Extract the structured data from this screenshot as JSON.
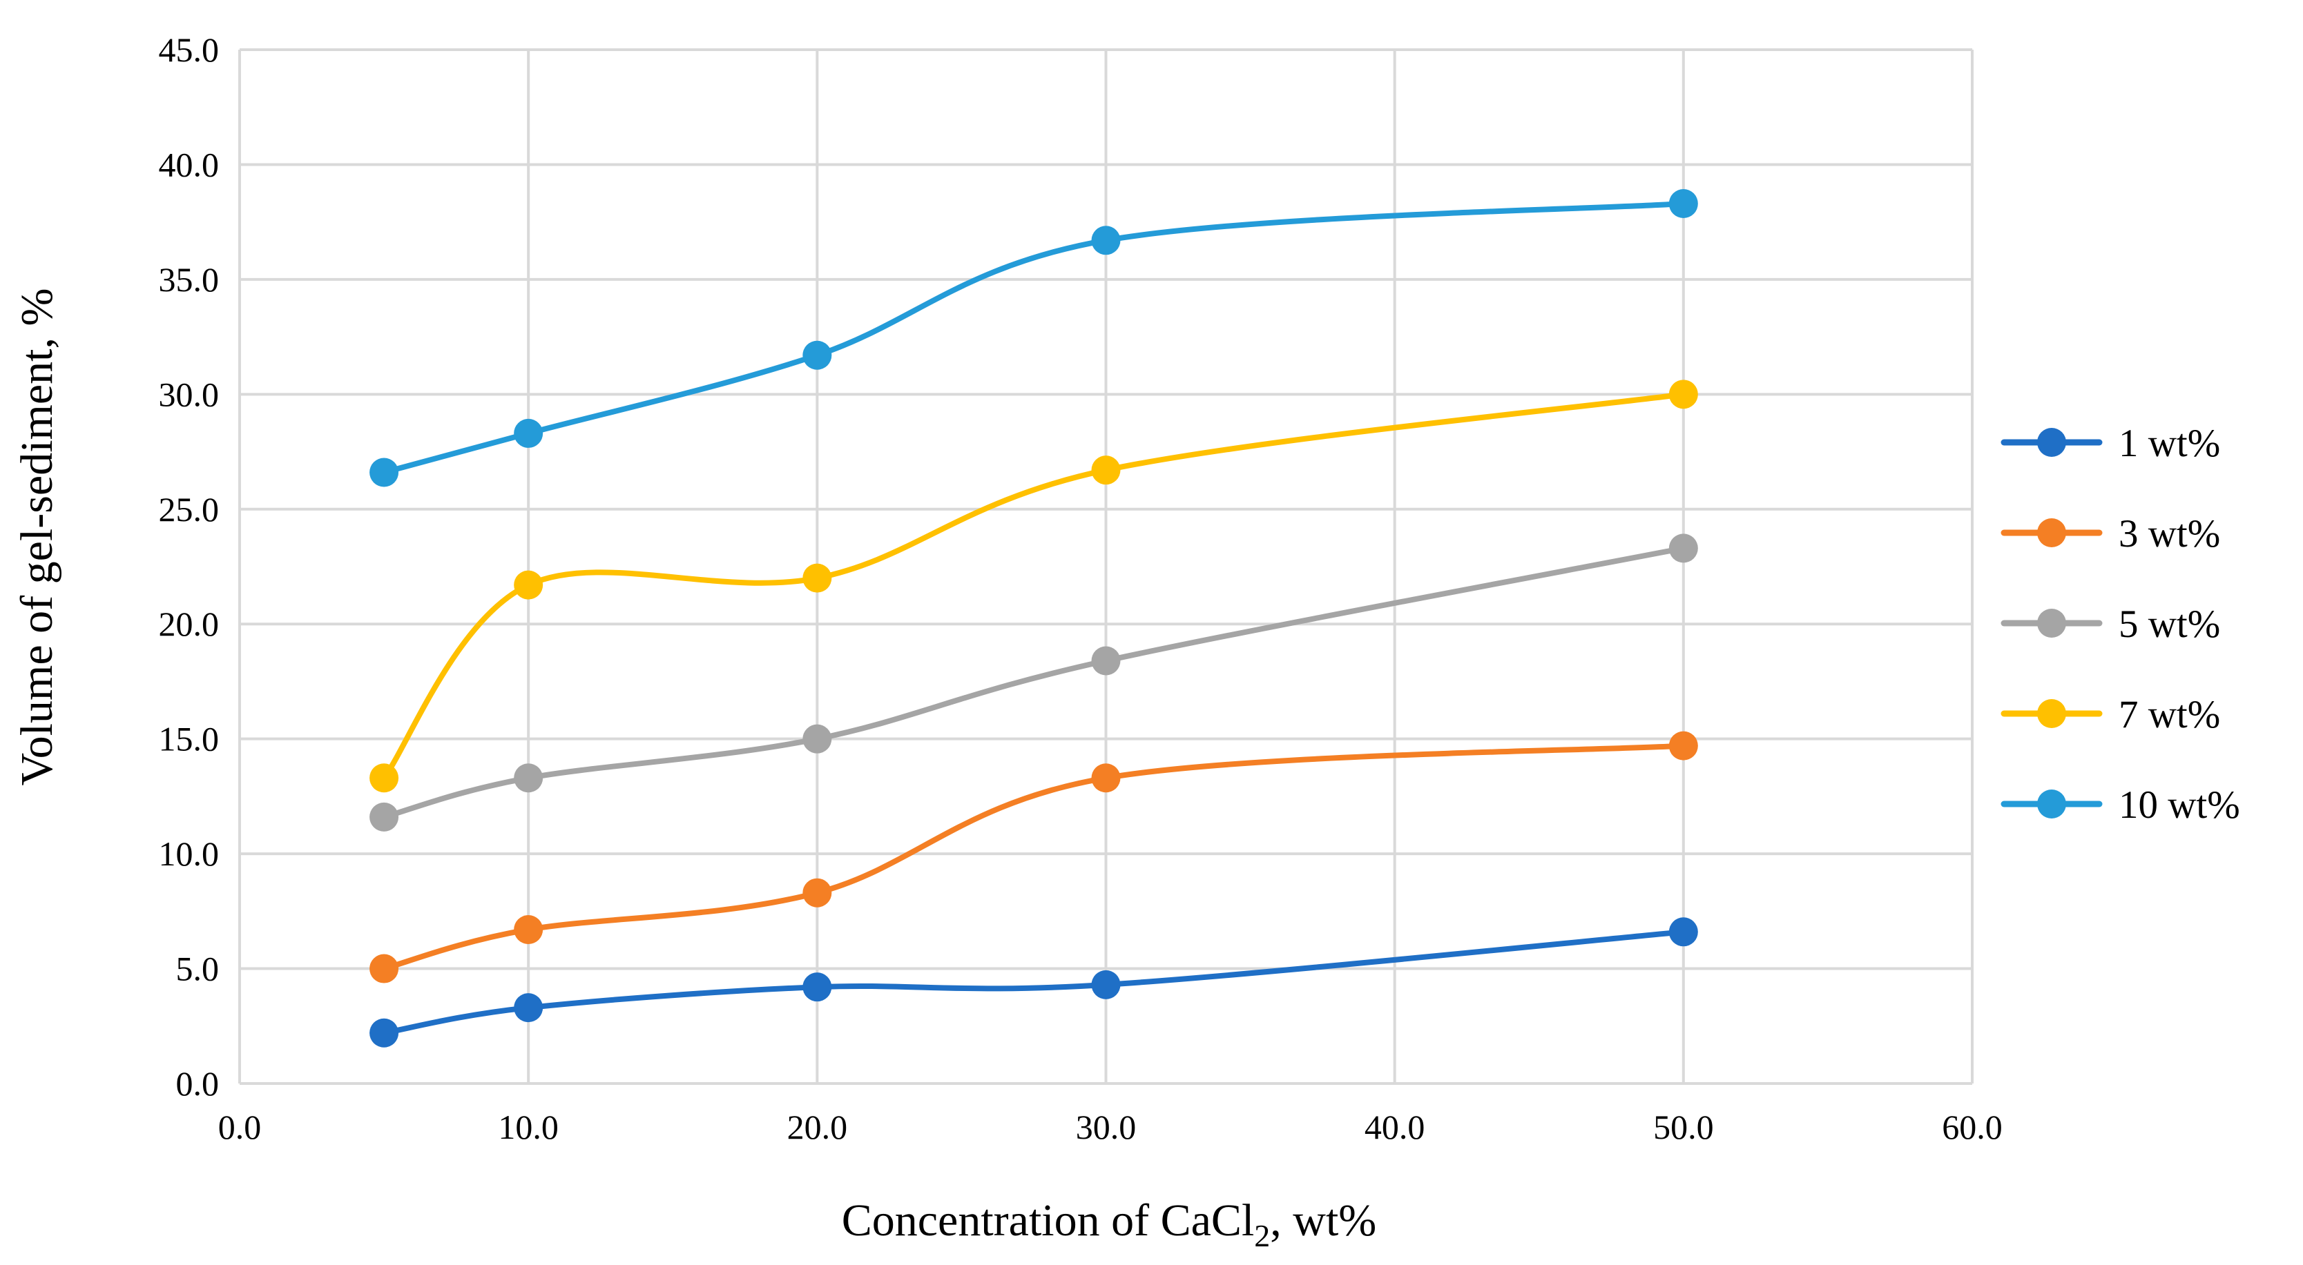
{
  "chart_data": {
    "type": "line",
    "smooth": true,
    "xlabel": "Concentration of  CaCl",
    "xlabel_subscript": "2",
    "xlabel_suffix": ", wt%",
    "ylabel": "Volume of gel-sediment, %",
    "xlim": [
      0,
      60
    ],
    "ylim": [
      0,
      45
    ],
    "x_ticks": [
      "0.0",
      "10.0",
      "20.0",
      "30.0",
      "40.0",
      "50.0",
      "60.0"
    ],
    "y_ticks": [
      "0.0",
      "5.0",
      "10.0",
      "15.0",
      "20.0",
      "25.0",
      "30.0",
      "35.0",
      "40.0",
      "45.0"
    ],
    "grid": true,
    "legend_position": "right",
    "x": [
      5,
      10,
      20,
      30,
      50
    ],
    "series": [
      {
        "name": "1 wt%",
        "color": "#1f6fc6",
        "values": [
          2.2,
          3.3,
          4.2,
          4.3,
          6.6
        ]
      },
      {
        "name": "3 wt%",
        "color": "#f47f24",
        "values": [
          5.0,
          6.7,
          8.3,
          13.3,
          14.7
        ]
      },
      {
        "name": "5 wt%",
        "color": "#a5a5a5",
        "values": [
          11.6,
          13.3,
          15.0,
          18.4,
          23.3
        ]
      },
      {
        "name": "7 wt%",
        "color": "#ffc000",
        "values": [
          13.3,
          21.7,
          22.0,
          26.7,
          30.0
        ]
      },
      {
        "name": "10 wt%",
        "color": "#249bd8",
        "values": [
          26.6,
          28.3,
          31.7,
          36.7,
          38.3
        ]
      }
    ]
  }
}
